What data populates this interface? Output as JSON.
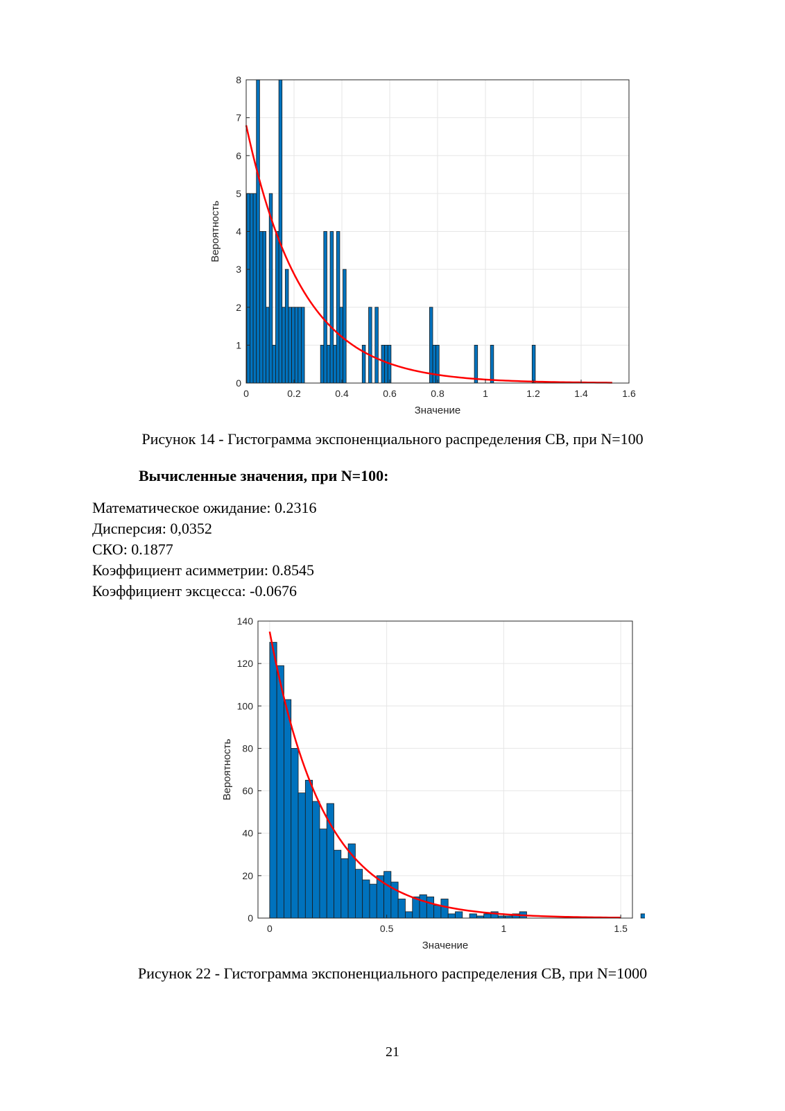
{
  "charts": [
    {
      "type": "bar",
      "xlabel": "Значение",
      "ylabel": "Вероятность",
      "xlim": [
        0,
        1.6
      ],
      "ylim": [
        0,
        8
      ],
      "xticks": [
        0,
        0.2,
        0.4,
        0.6,
        0.8,
        1,
        1.2,
        1.4,
        1.6
      ],
      "xtick_labels": [
        "0",
        "0.2",
        "0.4",
        "0.6",
        "0.8",
        "1",
        "1.2",
        "1.4",
        "1.6"
      ],
      "yticks": [
        0,
        1,
        2,
        3,
        4,
        5,
        6,
        7,
        8
      ],
      "ytick_labels": [
        "0",
        "1",
        "2",
        "3",
        "4",
        "5",
        "6",
        "7",
        "8"
      ],
      "grid": true,
      "bar_color": "#0072BD",
      "curve_color": "#FF0000",
      "bin_start": 0.0025,
      "bin_width": 0.0134,
      "values": [
        5,
        5,
        5,
        8,
        4,
        4,
        2,
        5,
        1,
        4,
        8,
        2,
        3,
        2,
        2,
        2,
        2,
        2,
        0,
        0,
        0,
        0,
        0,
        1,
        4,
        1,
        4,
        1,
        4,
        2,
        3,
        0,
        0,
        0,
        0,
        0,
        1,
        0,
        2,
        0,
        2,
        0,
        1,
        1,
        1,
        0,
        0,
        0,
        0,
        0,
        0,
        0,
        0,
        0,
        0,
        0,
        0,
        2,
        1,
        1,
        0,
        0,
        0,
        0,
        0,
        0,
        0,
        0,
        0,
        0,
        0,
        1,
        0,
        0,
        0,
        0,
        1,
        0,
        0,
        0,
        0,
        0,
        0,
        0,
        0,
        0,
        0,
        0,
        0,
        1
      ],
      "curve": {
        "amplitude": 6.8,
        "rate": 4.3,
        "x_start": 0,
        "x_end": 1.53
      }
    },
    {
      "type": "bar",
      "xlabel": "Значение",
      "ylabel": "Вероятность",
      "xlim": [
        -0.05,
        1.55
      ],
      "ylim": [
        0,
        140
      ],
      "xticks": [
        0,
        0.5,
        1,
        1.5
      ],
      "xtick_labels": [
        "0",
        "0.5",
        "1",
        "1.5"
      ],
      "yticks": [
        0,
        20,
        40,
        60,
        80,
        100,
        120,
        140
      ],
      "ytick_labels": [
        "0",
        "20",
        "40",
        "60",
        "80",
        "100",
        "120",
        "140"
      ],
      "grid": true,
      "bar_color": "#0072BD",
      "curve_color": "#FF0000",
      "bin_start": 0,
      "bin_width": 0.0305,
      "values": [
        130,
        119,
        103,
        80,
        59,
        65,
        55,
        42,
        54,
        32,
        28,
        35,
        23,
        18,
        16,
        20,
        22,
        17,
        9,
        3,
        10,
        11,
        10,
        6,
        9,
        2,
        3,
        0,
        2,
        1,
        2,
        3,
        1,
        1,
        2,
        3,
        0,
        0,
        0,
        0,
        0,
        0,
        0,
        0,
        0,
        0,
        0,
        0,
        0,
        0,
        0,
        0,
        2
      ],
      "curve": {
        "amplitude": 135,
        "rate": 4.3,
        "x_start": 0,
        "x_end": 1.5
      }
    }
  ],
  "captions": {
    "fig1": "Рисунок 14 - Гистограмма экспоненциального распределения СВ, при N=100",
    "fig2": "Рисунок 22 - Гистограмма экспоненциального распределения СВ, при N=1000"
  },
  "heading": "Вычисленные значения, при N=100:",
  "stats": [
    "Математическое ожидание: 0.2316",
    "Дисперсия: 0,0352",
    "СКО: 0.1877",
    "Коэффициент асимметрии: 0.8545",
    "Коэффициент эксцесса: -0.0676"
  ],
  "page_number": "21"
}
